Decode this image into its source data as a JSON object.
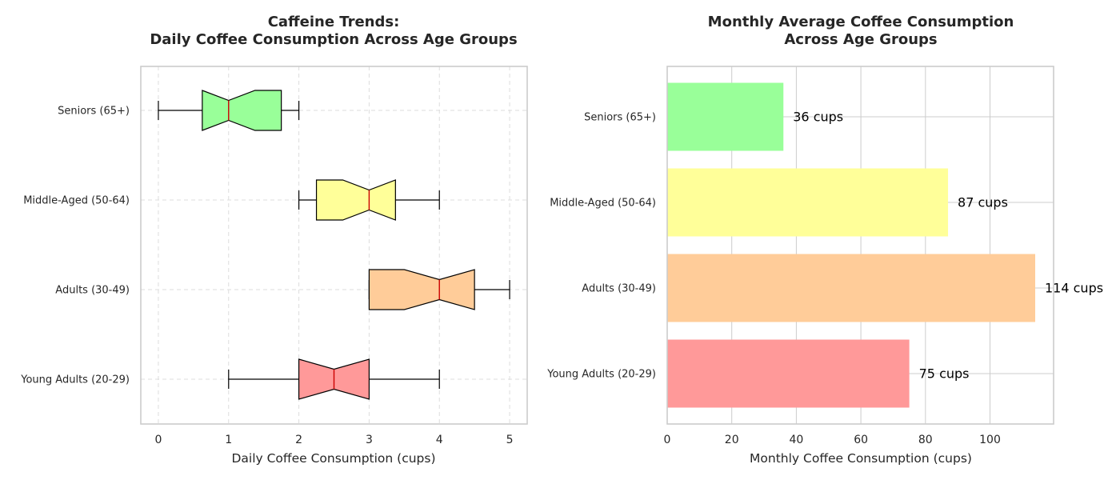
{
  "chart_data": [
    {
      "type": "box",
      "title": [
        "Caffeine Trends:",
        "Daily Coffee Consumption Across Age Groups"
      ],
      "xlabel": "Daily Coffee Consumption (cups)",
      "ylabel": "",
      "orientation": "horizontal",
      "notched": true,
      "grid": "dashed",
      "xlim": [
        -0.25,
        5.25
      ],
      "xticks": [
        0,
        1,
        2,
        3,
        4,
        5
      ],
      "categories": [
        "Young Adults (20-29)",
        "Adults (30-49)",
        "Middle-Aged (50-64)",
        "Seniors (65+)"
      ],
      "colors": [
        "#ff9999",
        "#ffcc99",
        "#ffff99",
        "#99ff99"
      ],
      "median_color": "#cc0000",
      "boxes": [
        {
          "min": 1,
          "q1": 2,
          "median": 2.5,
          "q3": 3,
          "max": 4,
          "notch_low": 2.0,
          "notch_high": 3.0
        },
        {
          "min": 3,
          "q1": 3,
          "median": 4,
          "q3": 4.5,
          "max": 5,
          "notch_low": 3.5,
          "notch_high": 4.5
        },
        {
          "min": 2,
          "q1": 2.25,
          "median": 3,
          "q3": 3.375,
          "max": 4,
          "notch_low": 2.625,
          "notch_high": 3.375
        },
        {
          "min": 0,
          "q1": 0.625,
          "median": 1,
          "q3": 1.75,
          "max": 2,
          "notch_low": 0.625,
          "notch_high": 1.375
        }
      ]
    },
    {
      "type": "bar",
      "orientation": "horizontal",
      "title": [
        "Monthly Average Coffee Consumption",
        "Across Age Groups"
      ],
      "xlabel": "Monthly Coffee Consumption (cups)",
      "ylabel": "",
      "grid": "solid",
      "xlim": [
        0,
        119.7
      ],
      "xticks": [
        0,
        20,
        40,
        60,
        80,
        100
      ],
      "categories": [
        "Young Adults (20-29)",
        "Adults (30-49)",
        "Middle-Aged (50-64)",
        "Seniors (65+)"
      ],
      "values": [
        75,
        114,
        87,
        36
      ],
      "value_suffix": " cups",
      "colors": [
        "#ff9999",
        "#ffcc99",
        "#ffff99",
        "#99ff99"
      ]
    }
  ]
}
